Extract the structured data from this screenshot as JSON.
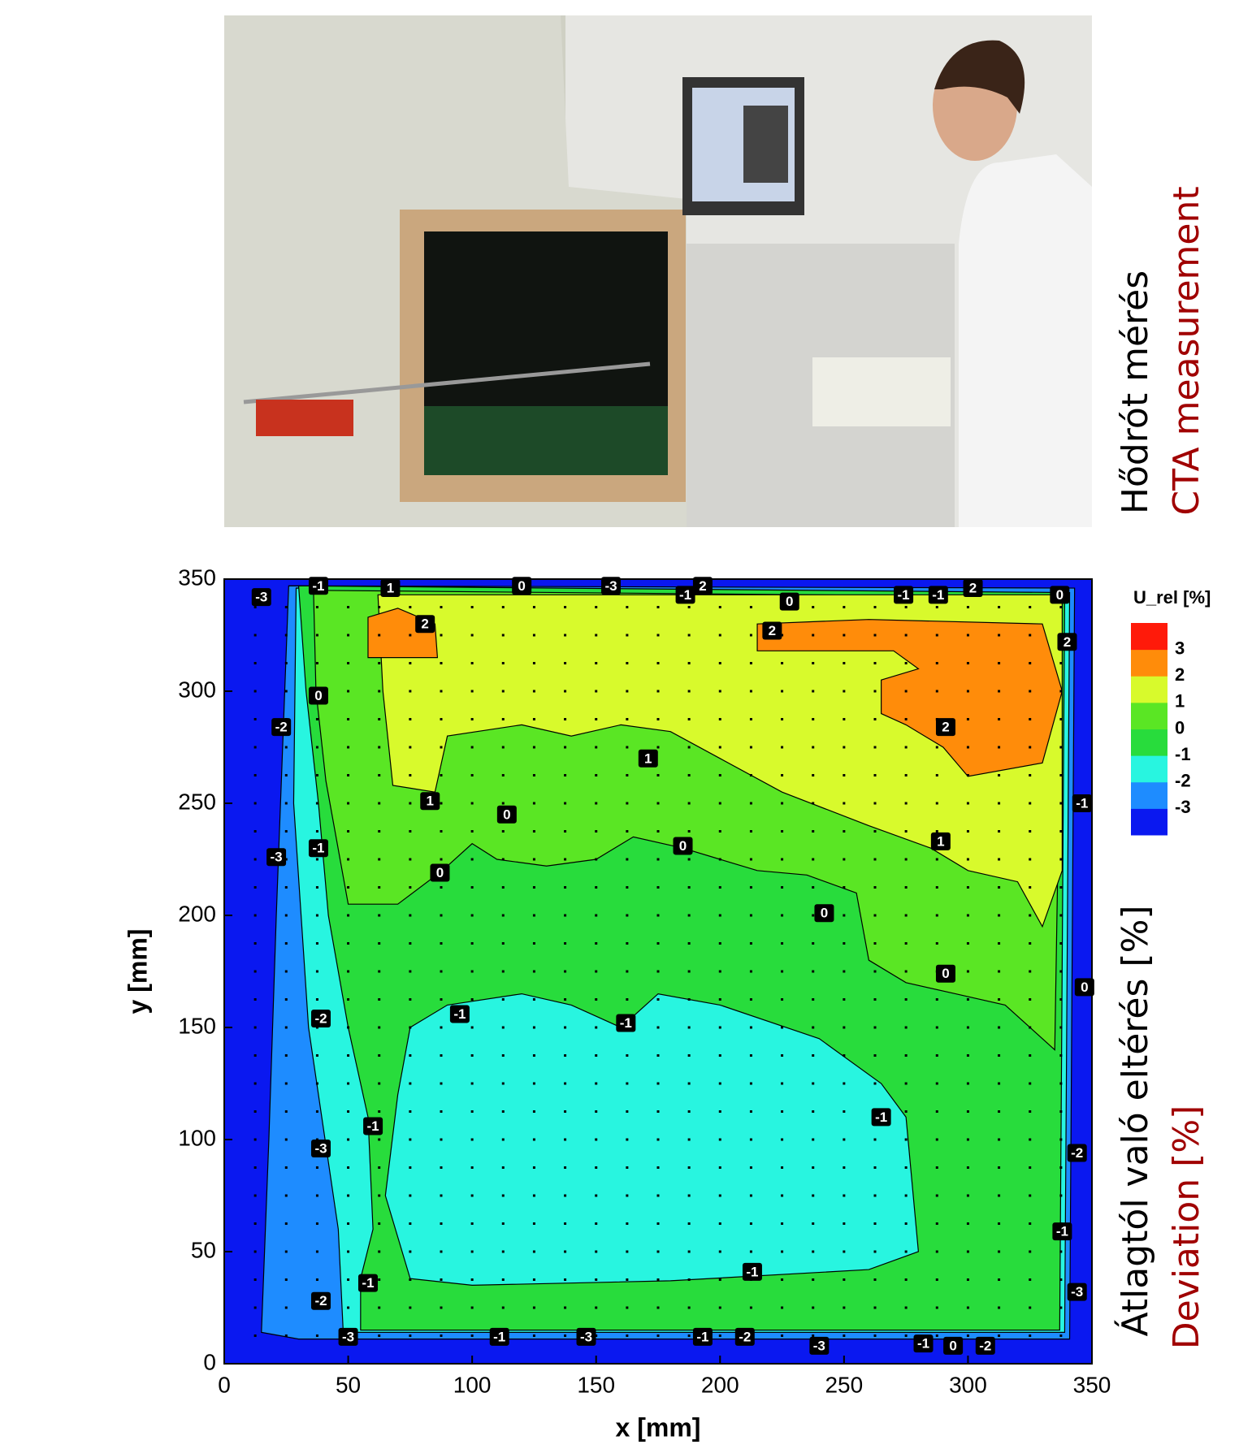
{
  "captions": {
    "photo_hu": "Hődrót mérés",
    "photo_en": "CTA measurement",
    "plot_hu": "Átlagtól való eltérés [%]",
    "plot_en": "Deviation [%]"
  },
  "chart_data": {
    "type": "contour",
    "x_label": "x [mm]",
    "y_label": "y [mm]",
    "colorbar_title": "U_rel [%]",
    "xlim": [
      0,
      350
    ],
    "ylim": [
      0,
      350
    ],
    "xticks": [
      0,
      50,
      100,
      150,
      200,
      250,
      300,
      350
    ],
    "yticks": [
      0,
      50,
      100,
      150,
      200,
      250,
      300,
      350
    ],
    "levels": [
      -3,
      -2,
      -1,
      0,
      1,
      2,
      3
    ],
    "colors": [
      "#0a18f0",
      "#1e8cff",
      "#28f5e0",
      "#28dc3c",
      "#5ae624",
      "#d8fa2c",
      "#ff8c0a",
      "#ff1a0a"
    ],
    "regions": [
      {
        "level": -3,
        "points": [
          [
            15,
            14
          ],
          [
            30,
            11
          ],
          [
            341,
            11
          ],
          [
            343,
            346
          ],
          [
            26,
            347
          ],
          [
            21,
            200
          ],
          [
            18,
            100
          ]
        ]
      },
      {
        "level": -2,
        "points": [
          [
            48,
            14
          ],
          [
            339,
            14
          ],
          [
            341,
            344
          ],
          [
            29,
            346
          ],
          [
            28,
            250
          ],
          [
            34,
            150
          ],
          [
            46,
            60
          ]
        ]
      },
      {
        "level": -1,
        "points": [
          [
            55,
            15
          ],
          [
            337,
            15
          ],
          [
            339,
            344
          ],
          [
            30,
            347
          ],
          [
            33,
            300
          ],
          [
            38,
            250
          ],
          [
            42,
            200
          ],
          [
            50,
            150
          ],
          [
            58,
            110
          ],
          [
            60,
            60
          ],
          [
            55,
            38
          ]
        ]
      },
      {
        "level": 0,
        "points": [
          [
            36,
            345
          ],
          [
            37,
            300
          ],
          [
            41,
            260
          ],
          [
            50,
            205
          ],
          [
            70,
            205
          ],
          [
            88,
            220
          ],
          [
            100,
            232
          ],
          [
            110,
            225
          ],
          [
            130,
            222
          ],
          [
            150,
            225
          ],
          [
            165,
            235
          ],
          [
            185,
            230
          ],
          [
            200,
            225
          ],
          [
            215,
            220
          ],
          [
            235,
            218
          ],
          [
            255,
            210
          ],
          [
            260,
            180
          ],
          [
            275,
            170
          ],
          [
            295,
            165
          ],
          [
            315,
            160
          ],
          [
            335,
            140
          ],
          [
            338,
            342
          ]
        ]
      },
      {
        "level": 1,
        "points": [
          [
            62,
            343
          ],
          [
            64,
            300
          ],
          [
            68,
            258
          ],
          [
            85,
            255
          ],
          [
            90,
            280
          ],
          [
            120,
            285
          ],
          [
            140,
            280
          ],
          [
            160,
            285
          ],
          [
            180,
            282
          ],
          [
            200,
            270
          ],
          [
            225,
            255
          ],
          [
            260,
            240
          ],
          [
            285,
            230
          ],
          [
            300,
            220
          ],
          [
            320,
            215
          ],
          [
            330,
            195
          ],
          [
            338,
            220
          ],
          [
            338,
            343
          ]
        ]
      },
      {
        "level": 2,
        "points": [
          [
            58,
            333
          ],
          [
            70,
            337
          ],
          [
            85,
            330
          ],
          [
            86,
            315
          ],
          [
            58,
            315
          ]
        ]
      },
      {
        "level": 2,
        "points": [
          [
            215,
            330
          ],
          [
            260,
            332
          ],
          [
            330,
            330
          ],
          [
            338,
            300
          ],
          [
            330,
            268
          ],
          [
            300,
            262
          ],
          [
            290,
            275
          ],
          [
            275,
            285
          ],
          [
            265,
            290
          ],
          [
            265,
            305
          ],
          [
            280,
            310
          ],
          [
            270,
            318
          ],
          [
            215,
            318
          ]
        ]
      },
      {
        "level": -2,
        "points": [
          [
            75,
            150
          ],
          [
            90,
            160
          ],
          [
            120,
            165
          ],
          [
            140,
            160
          ],
          [
            150,
            155
          ],
          [
            160,
            150
          ],
          [
            175,
            165
          ],
          [
            200,
            160
          ],
          [
            240,
            145
          ],
          [
            265,
            125
          ],
          [
            275,
            110
          ],
          [
            280,
            50
          ],
          [
            260,
            42
          ],
          [
            180,
            37
          ],
          [
            100,
            35
          ],
          [
            75,
            38
          ],
          [
            65,
            75
          ],
          [
            70,
            120
          ]
        ]
      }
    ],
    "contour_labels": [
      {
        "x": 15,
        "y": 342,
        "value": -3
      },
      {
        "x": 38,
        "y": 347,
        "value": -1
      },
      {
        "x": 67,
        "y": 346,
        "value": 1
      },
      {
        "x": 81,
        "y": 330,
        "value": 2
      },
      {
        "x": 120,
        "y": 347,
        "value": 0
      },
      {
        "x": 156,
        "y": 347,
        "value": -3
      },
      {
        "x": 186,
        "y": 343,
        "value": -1
      },
      {
        "x": 193,
        "y": 347,
        "value": 2
      },
      {
        "x": 228,
        "y": 340,
        "value": 0
      },
      {
        "x": 221,
        "y": 327,
        "value": 2
      },
      {
        "x": 274,
        "y": 343,
        "value": -1
      },
      {
        "x": 288,
        "y": 343,
        "value": -1
      },
      {
        "x": 302,
        "y": 346,
        "value": 2
      },
      {
        "x": 337,
        "y": 343,
        "value": 0
      },
      {
        "x": 340,
        "y": 322,
        "value": 2
      },
      {
        "x": 38,
        "y": 298,
        "value": 0
      },
      {
        "x": 23,
        "y": 284,
        "value": -2
      },
      {
        "x": 291,
        "y": 284,
        "value": 2
      },
      {
        "x": 171,
        "y": 270,
        "value": 1
      },
      {
        "x": 83,
        "y": 251,
        "value": 1
      },
      {
        "x": 114,
        "y": 245,
        "value": 0
      },
      {
        "x": 346,
        "y": 250,
        "value": -1
      },
      {
        "x": 38,
        "y": 230,
        "value": -1
      },
      {
        "x": 21,
        "y": 226,
        "value": -3
      },
      {
        "x": 185,
        "y": 231,
        "value": 0
      },
      {
        "x": 289,
        "y": 233,
        "value": 1
      },
      {
        "x": 87,
        "y": 219,
        "value": 0
      },
      {
        "x": 242,
        "y": 201,
        "value": 0
      },
      {
        "x": 291,
        "y": 174,
        "value": 0
      },
      {
        "x": 347,
        "y": 168,
        "value": 0
      },
      {
        "x": 95,
        "y": 156,
        "value": -1
      },
      {
        "x": 162,
        "y": 152,
        "value": -1
      },
      {
        "x": 39,
        "y": 154,
        "value": -2
      },
      {
        "x": 60,
        "y": 106,
        "value": -1
      },
      {
        "x": 265,
        "y": 110,
        "value": -1
      },
      {
        "x": 39,
        "y": 96,
        "value": -3
      },
      {
        "x": 344,
        "y": 94,
        "value": -2
      },
      {
        "x": 338,
        "y": 59,
        "value": -1
      },
      {
        "x": 213,
        "y": 41,
        "value": -1
      },
      {
        "x": 58,
        "y": 36,
        "value": -1
      },
      {
        "x": 344,
        "y": 32,
        "value": -3
      },
      {
        "x": 39,
        "y": 28,
        "value": -2
      },
      {
        "x": 50,
        "y": 12,
        "value": -3
      },
      {
        "x": 111,
        "y": 12,
        "value": -1
      },
      {
        "x": 146,
        "y": 12,
        "value": -3
      },
      {
        "x": 193,
        "y": 12,
        "value": -1
      },
      {
        "x": 210,
        "y": 12,
        "value": -2
      },
      {
        "x": 240,
        "y": 8,
        "value": -3
      },
      {
        "x": 282,
        "y": 9,
        "value": -1
      },
      {
        "x": 294,
        "y": 8,
        "value": 0
      },
      {
        "x": 307,
        "y": 8,
        "value": -2
      }
    ]
  }
}
